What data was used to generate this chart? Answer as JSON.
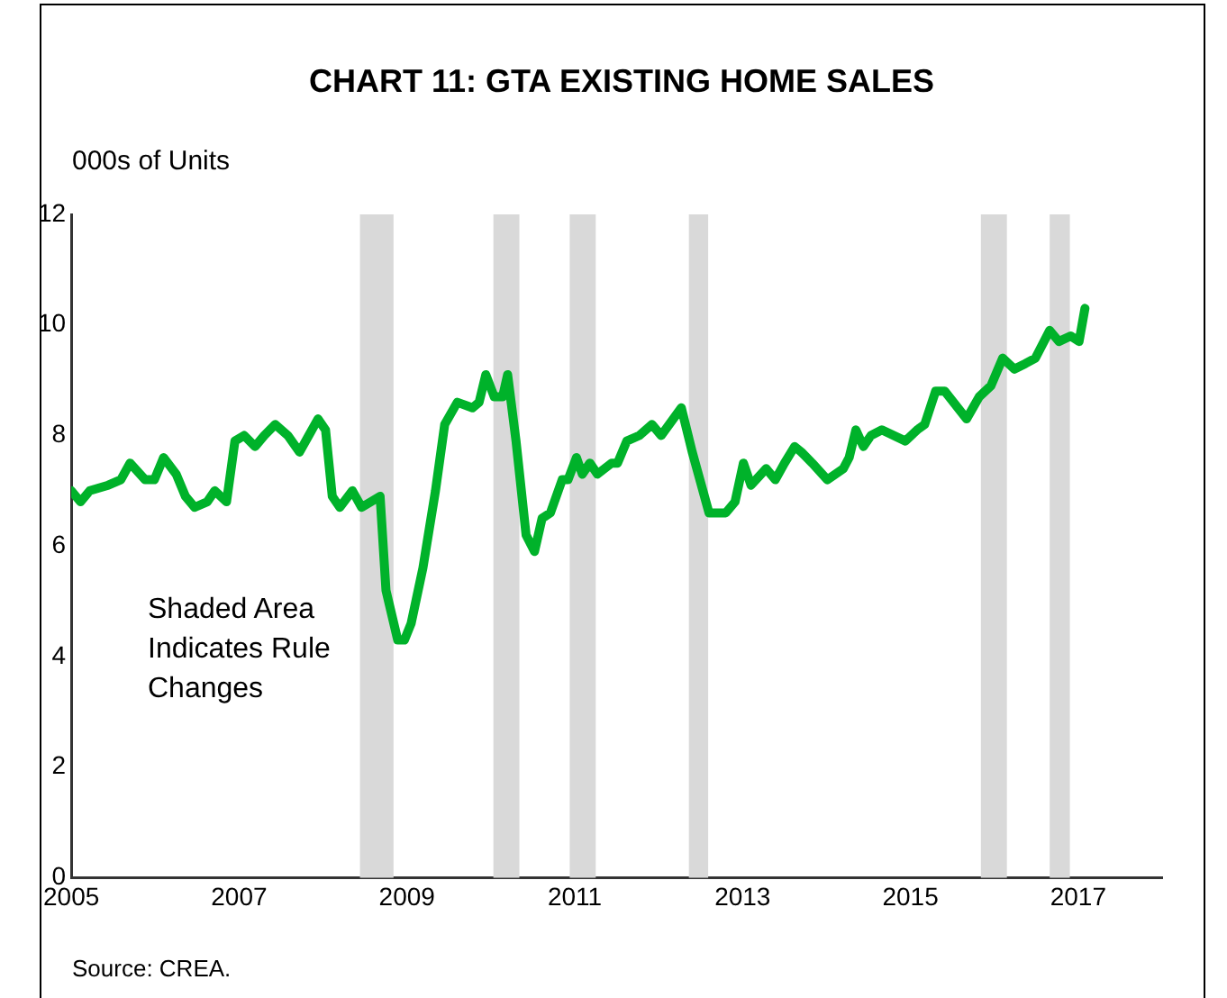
{
  "chart_data": {
    "type": "line",
    "title": "CHART 11: GTA EXISTING HOME SALES",
    "ylabel": "000s of Units",
    "annotations": [
      "Shaded Area Indicates Rule Changes",
      "Source: CREA."
    ],
    "xlim": [
      2005,
      2018
    ],
    "xticks": [
      2005,
      2007,
      2009,
      2011,
      2013,
      2015,
      2017
    ],
    "ylim": [
      0,
      12
    ],
    "yticks": [
      0,
      2,
      4,
      6,
      8,
      10,
      12
    ],
    "grid": false,
    "legend": false,
    "marker": "none",
    "line_style": "solid",
    "bands": [
      {
        "axis": "x",
        "from": 2008.44,
        "to": 2008.84,
        "color": "#d9d9d9"
      },
      {
        "axis": "x",
        "from": 2010.03,
        "to": 2010.34,
        "color": "#d9d9d9"
      },
      {
        "axis": "x",
        "from": 2010.94,
        "to": 2011.25,
        "color": "#d9d9d9"
      },
      {
        "axis": "x",
        "from": 2012.36,
        "to": 2012.59,
        "color": "#d9d9d9"
      },
      {
        "axis": "x",
        "from": 2015.84,
        "to": 2016.15,
        "color": "#d9d9d9"
      },
      {
        "axis": "x",
        "from": 2016.66,
        "to": 2016.9,
        "color": "#d9d9d9"
      }
    ],
    "series": [
      {
        "color": "#00b22a",
        "x": [
          2005.0,
          2005.11,
          2005.22,
          2005.44,
          2005.59,
          2005.7,
          2005.88,
          2005.99,
          2006.1,
          2006.25,
          2006.36,
          2006.47,
          2006.62,
          2006.71,
          2006.85,
          2006.95,
          2007.06,
          2007.19,
          2007.3,
          2007.43,
          2007.58,
          2007.72,
          2007.83,
          2007.94,
          2008.03,
          2008.11,
          2008.2,
          2008.35,
          2008.46,
          2008.68,
          2008.75,
          2008.89,
          2008.97,
          2009.05,
          2009.19,
          2009.34,
          2009.45,
          2009.6,
          2009.78,
          2009.86,
          2009.94,
          2010.04,
          2010.14,
          2010.2,
          2010.3,
          2010.42,
          2010.52,
          2010.61,
          2010.71,
          2010.85,
          2010.92,
          2011.02,
          2011.09,
          2011.18,
          2011.27,
          2011.44,
          2011.51,
          2011.62,
          2011.77,
          2011.92,
          2012.03,
          2012.27,
          2012.4,
          2012.6,
          2012.8,
          2012.91,
          2013.01,
          2013.1,
          2013.28,
          2013.39,
          2013.5,
          2013.62,
          2013.7,
          2013.83,
          2014.01,
          2014.2,
          2014.27,
          2014.35,
          2014.44,
          2014.53,
          2014.66,
          2014.94,
          2015.08,
          2015.17,
          2015.3,
          2015.41,
          2015.67,
          2015.82,
          2015.96,
          2016.1,
          2016.24,
          2016.37,
          2016.49,
          2016.66,
          2016.77,
          2016.91,
          2017.01,
          2017.08
        ],
        "values": [
          7.0,
          6.8,
          7.0,
          7.1,
          7.2,
          7.5,
          7.2,
          7.2,
          7.6,
          7.3,
          6.9,
          6.7,
          6.8,
          7.0,
          6.8,
          7.9,
          8.0,
          7.8,
          8.0,
          8.2,
          8.0,
          7.7,
          8.0,
          8.3,
          8.1,
          6.9,
          6.7,
          7.0,
          6.7,
          6.9,
          5.2,
          4.3,
          4.3,
          4.6,
          5.6,
          7.0,
          8.2,
          8.6,
          8.5,
          8.6,
          9.1,
          8.7,
          8.7,
          9.1,
          7.9,
          6.2,
          5.9,
          6.5,
          6.6,
          7.2,
          7.2,
          7.6,
          7.3,
          7.5,
          7.3,
          7.5,
          7.5,
          7.9,
          8.0,
          8.2,
          8.0,
          8.5,
          7.7,
          6.6,
          6.6,
          6.8,
          7.5,
          7.1,
          7.4,
          7.2,
          7.5,
          7.8,
          7.7,
          7.5,
          7.2,
          7.4,
          7.6,
          8.1,
          7.8,
          8.0,
          8.1,
          7.9,
          8.1,
          8.2,
          8.8,
          8.8,
          8.3,
          8.7,
          8.9,
          9.4,
          9.2,
          9.3,
          9.4,
          9.9,
          9.7,
          9.8,
          9.7,
          10.3
        ]
      }
    ]
  }
}
